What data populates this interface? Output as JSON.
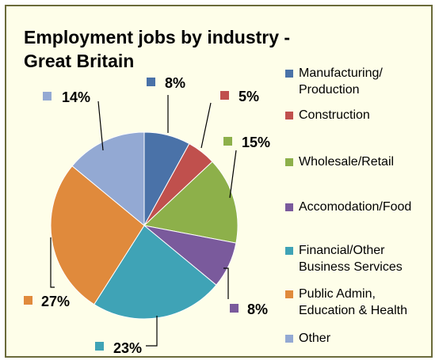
{
  "chart_data": {
    "type": "pie",
    "title_lines": [
      "Employment jobs by industry -",
      "Great Britain"
    ],
    "slices": [
      {
        "name": "Manufacturing/\nProduction",
        "value": 8,
        "label": "8%",
        "color": "#4a72a8"
      },
      {
        "name": "Construction",
        "value": 5,
        "label": "5%",
        "color": "#c0504d"
      },
      {
        "name": "Wholesale/Retail",
        "value": 15,
        "label": "15%",
        "color": "#8db04a"
      },
      {
        "name": "Accomodation/Food",
        "value": 8,
        "label": "8%",
        "color": "#7a5a9c"
      },
      {
        "name": "Financial/Other\nBusiness Services",
        "value": 23,
        "label": "23%",
        "color": "#3fa3b6"
      },
      {
        "name": "Public Admin,\nEducation & Health",
        "value": 27,
        "label": "27%",
        "color": "#e08a3c"
      },
      {
        "name": "Other",
        "value": 14,
        "label": "14%",
        "color": "#93a9d3"
      }
    ],
    "legend_placement": "right"
  }
}
